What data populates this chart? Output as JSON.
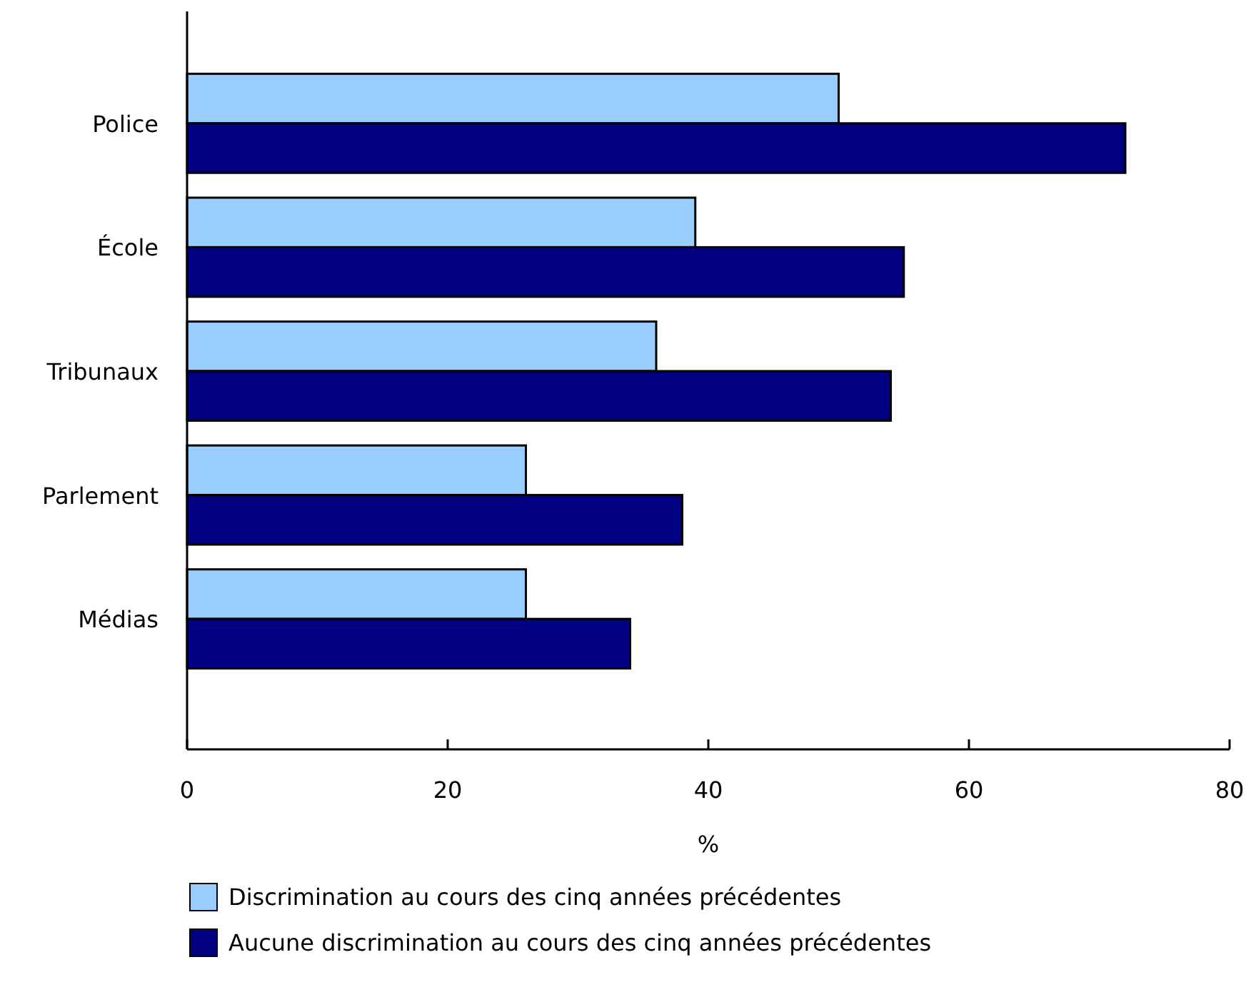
{
  "chart_data": {
    "type": "bar",
    "orientation": "horizontal",
    "categories": [
      "Police",
      "École",
      "Tribunaux",
      "Parlement",
      "Médias"
    ],
    "xlabel": "%",
    "xlim": [
      0,
      80
    ],
    "xticks": [
      0,
      20,
      40,
      60,
      80
    ],
    "grid": false,
    "legend": "bottom",
    "series": [
      {
        "name": "Discrimination au cours des cinq années précédentes",
        "color": "#99ccff",
        "values": [
          50,
          39,
          36,
          26,
          26
        ]
      },
      {
        "name": "Aucune discrimination au cours des cinq années précédentes",
        "color": "#000080",
        "values": [
          72,
          55,
          54,
          38,
          34
        ]
      }
    ]
  }
}
